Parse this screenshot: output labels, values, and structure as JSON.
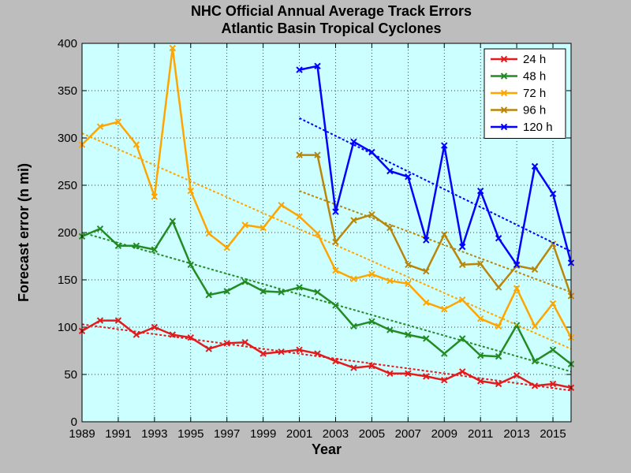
{
  "chart_data": {
    "type": "line",
    "title": "NHC Official Annual Average Track Errors",
    "subtitle": "Atlantic Basin Tropical Cyclones",
    "xlabel": "Year",
    "ylabel": "Forecast error (n mi)",
    "xlim": [
      1989,
      2016
    ],
    "ylim": [
      0,
      400
    ],
    "x_ticks": [
      1989,
      1991,
      1993,
      1995,
      1997,
      1999,
      2001,
      2003,
      2005,
      2007,
      2009,
      2011,
      2013,
      2015
    ],
    "y_ticks": [
      0,
      50,
      100,
      150,
      200,
      250,
      300,
      350,
      400
    ],
    "grid": true,
    "legend_position": "top-right",
    "plot_background": "#ccffff",
    "series": [
      {
        "name": "24 h",
        "color": "#e41a1c",
        "x": [
          1989,
          1990,
          1991,
          1992,
          1993,
          1994,
          1995,
          1996,
          1997,
          1998,
          1999,
          2000,
          2001,
          2002,
          2003,
          2004,
          2005,
          2006,
          2007,
          2008,
          2009,
          2010,
          2011,
          2012,
          2013,
          2014,
          2015,
          2016
        ],
        "values": [
          96,
          107,
          107,
          92,
          100,
          92,
          89,
          77,
          83,
          84,
          72,
          74,
          76,
          72,
          64,
          57,
          59,
          51,
          51,
          48,
          44,
          53,
          43,
          40,
          49,
          38,
          40,
          36
        ],
        "trend": [
          103,
          33
        ]
      },
      {
        "name": "48 h",
        "color": "#228b22",
        "x": [
          1989,
          1990,
          1991,
          1992,
          1993,
          1994,
          1995,
          1996,
          1997,
          1998,
          1999,
          2000,
          2001,
          2002,
          2003,
          2004,
          2005,
          2006,
          2007,
          2008,
          2009,
          2010,
          2011,
          2012,
          2013,
          2014,
          2015,
          2016
        ],
        "values": [
          196,
          204,
          186,
          186,
          182,
          212,
          166,
          134,
          138,
          148,
          138,
          137,
          142,
          137,
          123,
          101,
          106,
          97,
          92,
          88,
          72,
          88,
          70,
          69,
          102,
          64,
          76,
          61
        ],
        "trend": [
          200,
          53
        ]
      },
      {
        "name": "72 h",
        "color": "#ffa500",
        "x": [
          1989,
          1990,
          1991,
          1992,
          1993,
          1994,
          1995,
          1996,
          1997,
          1998,
          1999,
          2000,
          2001,
          2002,
          2003,
          2004,
          2005,
          2006,
          2007,
          2008,
          2009,
          2010,
          2011,
          2012,
          2013,
          2014,
          2015,
          2016
        ],
        "values": [
          293,
          312,
          317,
          293,
          238,
          395,
          244,
          199,
          184,
          208,
          205,
          229,
          217,
          199,
          160,
          151,
          156,
          149,
          146,
          126,
          119,
          129,
          109,
          101,
          141,
          101,
          125,
          89
        ],
        "trend": [
          305,
          77
        ]
      },
      {
        "name": "96 h",
        "color": "#b8860b",
        "x": [
          2001,
          2002,
          2003,
          2004,
          2005,
          2006,
          2007,
          2008,
          2009,
          2010,
          2011,
          2012,
          2013,
          2014,
          2015,
          2016
        ],
        "values": [
          282,
          282,
          190,
          213,
          219,
          205,
          166,
          159,
          198,
          166,
          167,
          142,
          165,
          161,
          188,
          133
        ],
        "trend": [
          244,
          137
        ]
      },
      {
        "name": "120 h",
        "color": "#0000ff",
        "x": [
          2001,
          2002,
          2003,
          2004,
          2005,
          2006,
          2007,
          2008,
          2009,
          2010,
          2011,
          2012,
          2013,
          2014,
          2015,
          2016
        ],
        "values": [
          372,
          376,
          222,
          296,
          285,
          265,
          259,
          192,
          292,
          185,
          244,
          194,
          166,
          270,
          241,
          168
        ],
        "trend": [
          321,
          180
        ]
      }
    ]
  }
}
